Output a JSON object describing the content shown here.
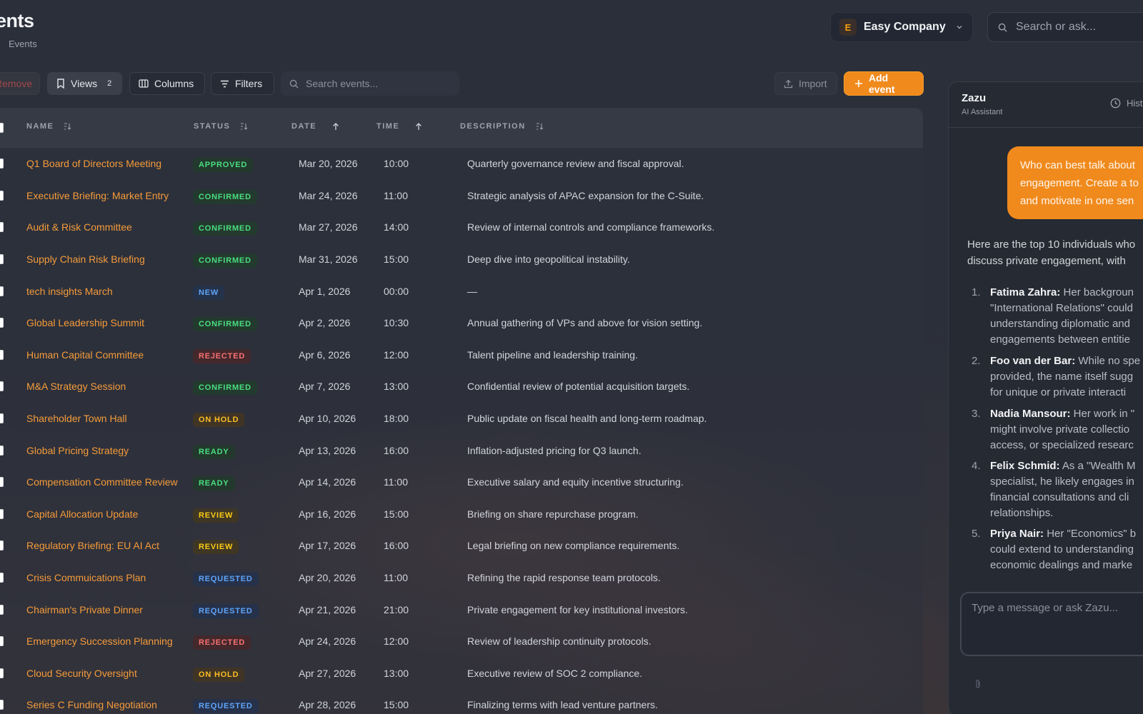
{
  "header": {
    "title": "ents",
    "breadcrumb": "Events",
    "company": {
      "initial": "E",
      "name": "Easy Company"
    },
    "search_placeholder": "Search or ask..."
  },
  "toolbar": {
    "remove_label": "Remove",
    "views_label": "Views",
    "views_count": "2",
    "columns_label": "Columns",
    "filters_label": "Filters",
    "search_placeholder": "Search events...",
    "import_label": "Import",
    "add_label": "Add event"
  },
  "table": {
    "columns": {
      "name": "NAME",
      "status": "STATUS",
      "date": "DATE",
      "time": "TIME",
      "description": "DESCRIPTION"
    },
    "status_colors": {
      "APPROVED": {
        "fg": "#4ade80",
        "bg": "#23392d"
      },
      "CONFIRMED": {
        "fg": "#4ade80",
        "bg": "#233a2e"
      },
      "NEW": {
        "fg": "#60a5fa",
        "bg": "#24324a"
      },
      "REJECTED": {
        "fg": "#f87171",
        "bg": "#43282c"
      },
      "ON HOLD": {
        "fg": "#fbbf24",
        "bg": "#403425"
      },
      "READY": {
        "fg": "#4ade80",
        "bg": "#23392d"
      },
      "REVIEW": {
        "fg": "#facc15",
        "bg": "#3f3624"
      },
      "REQUESTED": {
        "fg": "#60a5fa",
        "bg": "#26314a"
      }
    },
    "rows": [
      {
        "name": "Q1 Board of Directors Meeting",
        "status": "APPROVED",
        "date": "Mar 20, 2026",
        "time": "10:00",
        "description": "Quarterly governance review and fiscal approval."
      },
      {
        "name": "Executive Briefing: Market Entry",
        "status": "CONFIRMED",
        "date": "Mar 24, 2026",
        "time": "11:00",
        "description": "Strategic analysis of APAC expansion for the C-Suite."
      },
      {
        "name": "Audit & Risk Committee",
        "status": "CONFIRMED",
        "date": "Mar 27, 2026",
        "time": "14:00",
        "description": "Review of internal controls and compliance frameworks."
      },
      {
        "name": "Supply Chain Risk Briefing",
        "status": "CONFIRMED",
        "date": "Mar 31, 2026",
        "time": "15:00",
        "description": "Deep dive into geopolitical instability."
      },
      {
        "name": "tech insights March",
        "status": "NEW",
        "date": "Apr 1, 2026",
        "time": "00:00",
        "description": "—"
      },
      {
        "name": "Global Leadership Summit",
        "status": "CONFIRMED",
        "date": "Apr 2, 2026",
        "time": "10:30",
        "description": "Annual gathering of VPs and above for vision setting."
      },
      {
        "name": "Human Capital Committee",
        "status": "REJECTED",
        "date": "Apr 6, 2026",
        "time": "12:00",
        "description": "Talent pipeline and leadership training."
      },
      {
        "name": "M&A Strategy Session",
        "status": "CONFIRMED",
        "date": "Apr 7, 2026",
        "time": "13:00",
        "description": "Confidential review of potential acquisition targets."
      },
      {
        "name": "Shareholder Town Hall",
        "status": "ON HOLD",
        "date": "Apr 10, 2026",
        "time": "18:00",
        "description": "Public update on fiscal health and long-term roadmap."
      },
      {
        "name": "Global Pricing Strategy",
        "status": "READY",
        "date": "Apr 13, 2026",
        "time": "16:00",
        "description": "Inflation-adjusted pricing for Q3 launch."
      },
      {
        "name": "Compensation Committee Review",
        "status": "READY",
        "date": "Apr 14, 2026",
        "time": "11:00",
        "description": "Executive salary and equity incentive structuring."
      },
      {
        "name": "Capital Allocation Update",
        "status": "REVIEW",
        "date": "Apr 16, 2026",
        "time": "15:00",
        "description": "Briefing on share repurchase program."
      },
      {
        "name": "Regulatory Briefing: EU AI Act",
        "status": "REVIEW",
        "date": "Apr 17, 2026",
        "time": "16:00",
        "description": "Legal briefing on new compliance requirements."
      },
      {
        "name": "Crisis Commuications Plan",
        "status": "REQUESTED",
        "date": "Apr 20, 2026",
        "time": "11:00",
        "description": "Refining the rapid response team protocols."
      },
      {
        "name": "Chairman's Private Dinner",
        "status": "REQUESTED",
        "date": "Apr 21, 2026",
        "time": "21:00",
        "description": "Private engagement for key institutional investors."
      },
      {
        "name": "Emergency Succession Planning",
        "status": "REJECTED",
        "date": "Apr 24, 2026",
        "time": "12:00",
        "description": "Review of leadership continuity protocols."
      },
      {
        "name": "Cloud Security Oversight",
        "status": "ON HOLD",
        "date": "Apr 27, 2026",
        "time": "13:00",
        "description": "Executive review of SOC 2 compliance."
      },
      {
        "name": "Series C Funding Negotiation",
        "status": "REQUESTED",
        "date": "Apr 28, 2026",
        "time": "15:00",
        "description": "Finalizing terms with lead venture partners."
      }
    ]
  },
  "assistant": {
    "title": "Zazu",
    "subtitle": "AI Assistant",
    "history_label": "Hist",
    "user_message": "Who can best talk about\nengagement. Create a to\nand motivate in one sen",
    "reply_intro": "Here are the top 10 individuals who\ndiscuss private engagement, with",
    "items": [
      {
        "num": "1.",
        "who": "Fatima Zahra:",
        "text": " Her backgroun\n\"International Relations\" could\nunderstanding diplomatic and\nengagements between entitie"
      },
      {
        "num": "2.",
        "who": "Foo van der Bar:",
        "text": " While no spe\nprovided, the name itself sugg\nfor unique or private interacti"
      },
      {
        "num": "3.",
        "who": "Nadia Mansour:",
        "text": " Her work in \"\nmight involve private collectio\naccess, or specialized researc"
      },
      {
        "num": "4.",
        "who": "Felix Schmid:",
        "text": " As a \"Wealth M\nspecialist, he likely engages in\nfinancial consultations and cli\nrelationships."
      },
      {
        "num": "5.",
        "who": "Priya Nair:",
        "text": " Her \"Economics\" b\ncould extend to understanding\neconomic dealings and marke"
      }
    ],
    "input_placeholder": "Type a message or ask Zazu..."
  }
}
